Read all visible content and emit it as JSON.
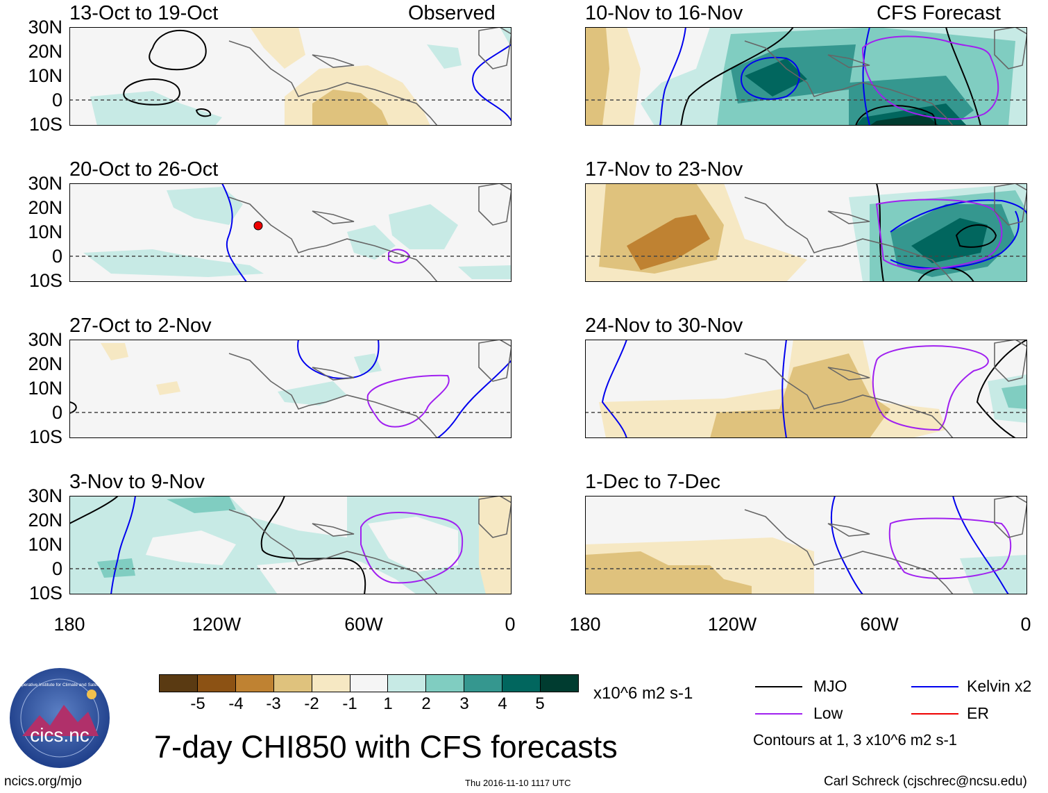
{
  "title": "7-day CHI850 with CFS forecasts",
  "site": "ncics.org/mjo",
  "timestamp": "Thu 2016-11-10 1117 UTC",
  "author": "Carl Schreck (cjschrec@ncsu.edu)",
  "logo": {
    "text": "cics.nc",
    "ring_text": "Cooperative Institute for Climate and Satellites"
  },
  "observed_label": "Observed",
  "forecast_label": "CFS Forecast",
  "panels_left": [
    {
      "title": "13-Oct to 19-Oct"
    },
    {
      "title": "20-Oct to 26-Oct"
    },
    {
      "title": "27-Oct to 2-Nov"
    },
    {
      "title": "3-Nov to 9-Nov"
    }
  ],
  "panels_right": [
    {
      "title": "10-Nov to 16-Nov"
    },
    {
      "title": "17-Nov to 23-Nov"
    },
    {
      "title": "24-Nov to 30-Nov"
    },
    {
      "title": "1-Dec to 7-Dec"
    }
  ],
  "lat_labels": [
    "30N",
    "20N",
    "10N",
    "0",
    "10S"
  ],
  "lon_labels": [
    "180",
    "120W",
    "60W",
    "0"
  ],
  "colorbar": {
    "ticks": [
      "-5",
      "-4",
      "-3",
      "-2",
      "-1",
      "1",
      "2",
      "3",
      "4",
      "5"
    ],
    "units": "x10^6 m2 s-1",
    "colors": [
      "#5a3a12",
      "#8c5214",
      "#bf8232",
      "#dfc27d",
      "#f6e8c3",
      "#f5f5f5",
      "#c7eae5",
      "#80cdc1",
      "#35978f",
      "#01665e",
      "#003c30"
    ]
  },
  "legend": {
    "mjo": {
      "label": "MJO",
      "color": "#000000"
    },
    "kelvin": {
      "label": "Kelvin x2",
      "color": "#0000ee"
    },
    "low": {
      "label": "Low",
      "color": "#a020f0"
    },
    "er": {
      "label": "ER",
      "color": "#ee0000"
    },
    "note": "Contours at 1, 3 x10^6 m2 s-1"
  }
}
